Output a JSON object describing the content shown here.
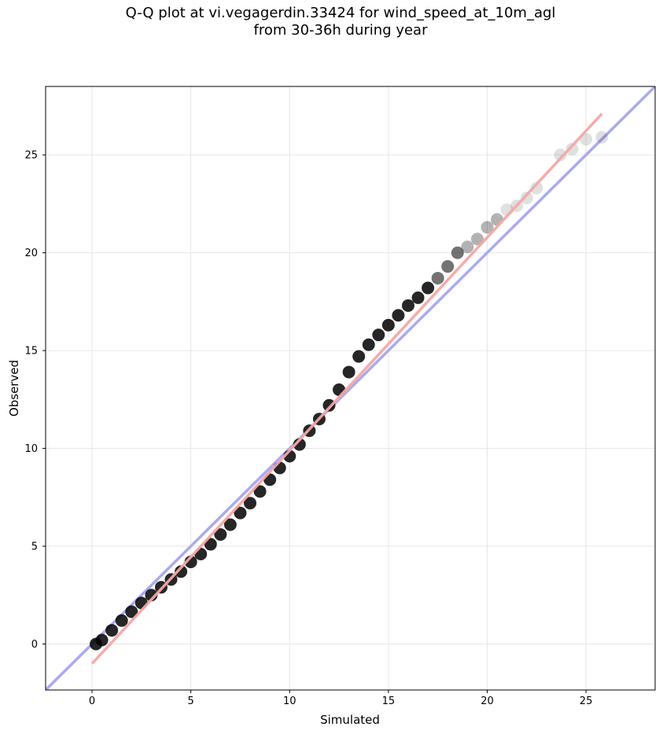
{
  "title": {
    "line1": "Q-Q plot at vi.vegagerdin.33424 for wind_speed_at_10m_agl",
    "line2": "from 30-36h during year"
  },
  "chart_data": {
    "type": "scatter",
    "title": "Q-Q plot at vi.vegagerdin.33424 for wind_speed_at_10m_agl from 30-36h during year",
    "xlabel": "Simulated",
    "ylabel": "Observed",
    "xlim": [
      -2.35,
      28.5
    ],
    "ylim": [
      -2.35,
      28.5
    ],
    "xticks": [
      0,
      5,
      10,
      15,
      20,
      25
    ],
    "yticks": [
      0,
      5,
      10,
      15,
      20,
      25
    ],
    "grid": true,
    "colors": {
      "points": "#000000",
      "identity_line": "#aaaaf0",
      "fit_line": "#f4a6a6"
    },
    "identity_line": {
      "points": [
        [
          -2.35,
          -2.35
        ],
        [
          28.5,
          28.5
        ]
      ]
    },
    "fit_line": {
      "points": [
        [
          0.0,
          -1.0
        ],
        [
          25.8,
          27.1
        ]
      ]
    },
    "quantiles": [
      [
        0.2,
        0.0
      ],
      [
        0.5,
        0.2
      ],
      [
        1.0,
        0.7
      ],
      [
        1.5,
        1.2
      ],
      [
        2.0,
        1.65
      ],
      [
        2.5,
        2.1
      ],
      [
        3.0,
        2.5
      ],
      [
        3.5,
        2.9
      ],
      [
        4.0,
        3.3
      ],
      [
        4.5,
        3.7
      ],
      [
        5.0,
        4.2
      ],
      [
        5.5,
        4.6
      ],
      [
        6.0,
        5.1
      ],
      [
        6.5,
        5.6
      ],
      [
        7.0,
        6.1
      ],
      [
        7.5,
        6.7
      ],
      [
        8.0,
        7.2
      ],
      [
        8.5,
        7.8
      ],
      [
        9.0,
        8.4
      ],
      [
        9.5,
        9.0
      ],
      [
        10.0,
        9.6
      ],
      [
        10.5,
        10.2
      ],
      [
        11.0,
        10.9
      ],
      [
        11.5,
        11.5
      ],
      [
        12.0,
        12.2
      ],
      [
        12.5,
        13.0
      ],
      [
        13.0,
        13.9
      ],
      [
        13.5,
        14.7
      ],
      [
        14.0,
        15.3
      ],
      [
        14.5,
        15.8
      ],
      [
        15.0,
        16.3
      ],
      [
        15.5,
        16.8
      ],
      [
        16.0,
        17.3
      ],
      [
        16.5,
        17.7
      ],
      [
        17.0,
        18.2
      ],
      [
        17.5,
        18.7
      ],
      [
        18.0,
        19.3
      ],
      [
        18.5,
        20.0
      ],
      [
        19.0,
        20.3
      ],
      [
        19.5,
        20.7
      ],
      [
        20.0,
        21.3
      ],
      [
        20.5,
        21.7
      ],
      [
        21.0,
        22.2
      ],
      [
        21.5,
        22.4
      ],
      [
        22.0,
        22.8
      ],
      [
        22.5,
        23.3
      ],
      [
        23.7,
        25.0
      ],
      [
        24.3,
        25.3
      ],
      [
        25.0,
        25.8
      ],
      [
        25.8,
        25.9
      ]
    ]
  }
}
